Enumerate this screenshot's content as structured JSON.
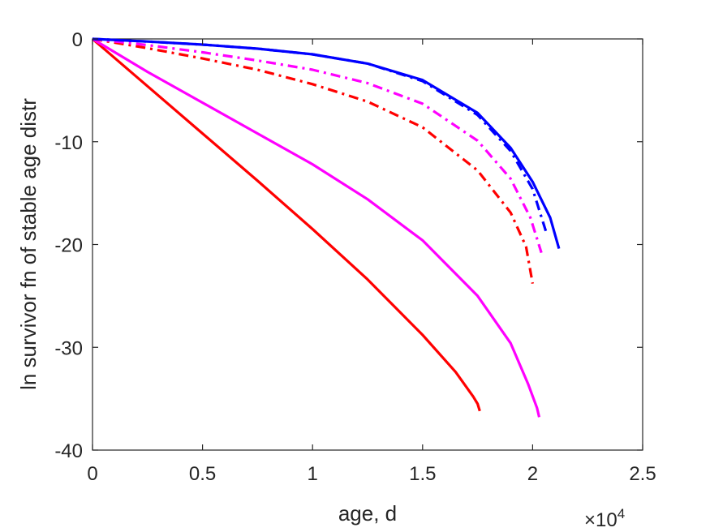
{
  "chart_data": {
    "type": "line",
    "title": "",
    "xlabel": "age, d",
    "ylabel": "ln survivor fn of stable age distr",
    "x_exponent_label": {
      "base": "×10",
      "exponent": "4"
    },
    "xlim": [
      0,
      25000
    ],
    "ylim": [
      -40,
      0
    ],
    "xticks": [
      0,
      5000,
      10000,
      15000,
      20000,
      25000
    ],
    "xtick_labels": [
      "0",
      "0.5",
      "1",
      "1.5",
      "2",
      "2.5"
    ],
    "yticks": [
      -40,
      -30,
      -20,
      -10,
      0
    ],
    "ytick_labels": [
      "-40",
      "-30",
      "-20",
      "-10",
      "0"
    ],
    "grid": false,
    "series": [
      {
        "color": "#ff0000",
        "style": "solid",
        "x": [
          0,
          2500,
          5000,
          7500,
          10000,
          12500,
          15000,
          16500,
          17300,
          17500,
          17600
        ],
        "y": [
          0,
          -4.6,
          -9.2,
          -13.8,
          -18.5,
          -23.4,
          -28.8,
          -32.4,
          -34.8,
          -35.5,
          -36.2
        ]
      },
      {
        "color": "#ff00ff",
        "style": "solid",
        "x": [
          0,
          2500,
          5000,
          7500,
          10000,
          12500,
          15000,
          17500,
          19000,
          19800,
          20200,
          20300
        ],
        "y": [
          0,
          -3.2,
          -6.2,
          -9.2,
          -12.2,
          -15.6,
          -19.6,
          -25.0,
          -29.6,
          -33.6,
          -35.9,
          -36.8
        ]
      },
      {
        "color": "#ff0000",
        "style": "dashdot",
        "x": [
          0,
          2500,
          5000,
          7500,
          10000,
          12500,
          15000,
          17500,
          19000,
          19700,
          20000
        ],
        "y": [
          0,
          -0.9,
          -1.9,
          -3.0,
          -4.4,
          -6.1,
          -8.6,
          -12.8,
          -16.9,
          -20.2,
          -23.8
        ]
      },
      {
        "color": "#ff00ff",
        "style": "dashdot",
        "x": [
          0,
          2500,
          5000,
          7500,
          10000,
          12500,
          15000,
          17500,
          19000,
          19900,
          20400
        ],
        "y": [
          0,
          -0.6,
          -1.3,
          -2.1,
          -3.0,
          -4.3,
          -6.3,
          -9.9,
          -13.6,
          -17.4,
          -20.8
        ]
      },
      {
        "color": "#0000ff",
        "style": "dashdot",
        "x": [
          0,
          2500,
          5000,
          7500,
          10000,
          12500,
          15000,
          17500,
          19000,
          20000,
          20600
        ],
        "y": [
          0,
          -0.25,
          -0.55,
          -0.95,
          -1.5,
          -2.4,
          -4.1,
          -7.4,
          -10.9,
          -14.6,
          -18.7
        ]
      },
      {
        "color": "#0000ff",
        "style": "solid",
        "x": [
          0,
          2500,
          5000,
          7500,
          10000,
          12500,
          15000,
          17500,
          19000,
          20000,
          20800,
          21200
        ],
        "y": [
          0,
          -0.25,
          -0.55,
          -0.95,
          -1.5,
          -2.4,
          -4.0,
          -7.2,
          -10.6,
          -13.9,
          -17.4,
          -20.4
        ]
      }
    ]
  }
}
